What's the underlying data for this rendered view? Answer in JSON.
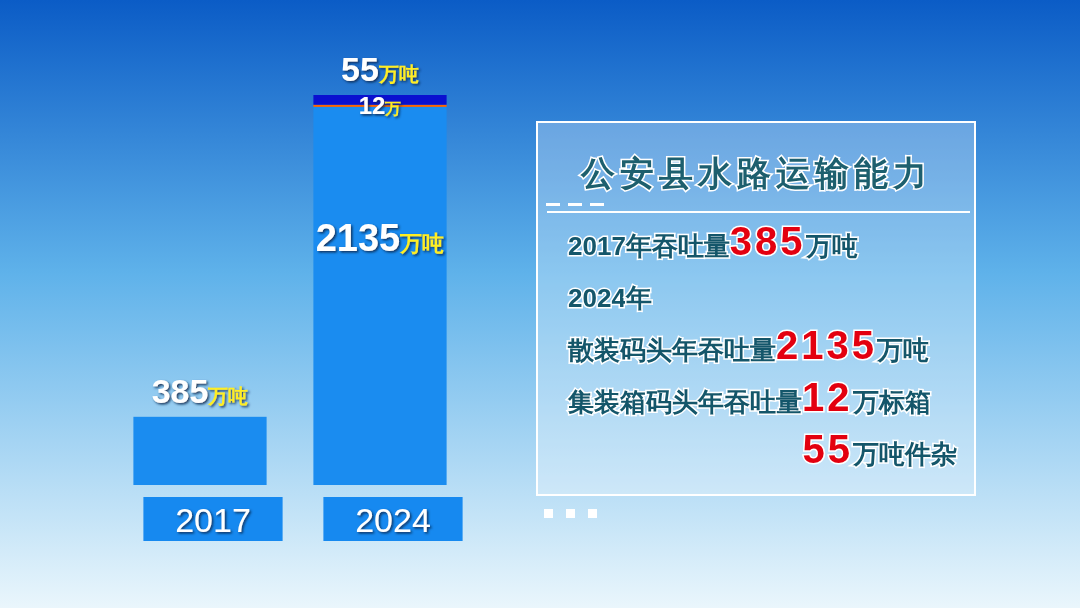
{
  "chart_data": [
    {
      "type": "bar",
      "stacked": true,
      "categories": [
        "2017",
        "2024"
      ],
      "series": [
        {
          "color": "#1a8cf0",
          "values": [
            385,
            2135
          ],
          "value_labels": [
            "385万吨",
            "2135万吨"
          ]
        },
        {
          "color": "#ff6600",
          "values": [
            null,
            12
          ],
          "value_labels": [
            null,
            "12万"
          ]
        },
        {
          "color": "#0a10d0",
          "values": [
            null,
            55
          ],
          "value_labels": [
            null,
            "55万吨"
          ]
        }
      ]
    },
    {
      "type": "other",
      "title": "公安县水路运输能力",
      "annotations": [
        "2017年吞吐量385万吨",
        "2024年",
        "散装码头年吞吐量2135万吨",
        "集装箱码头年吞吐量12万标箱",
        "55万吨件杂"
      ]
    }
  ]
}
